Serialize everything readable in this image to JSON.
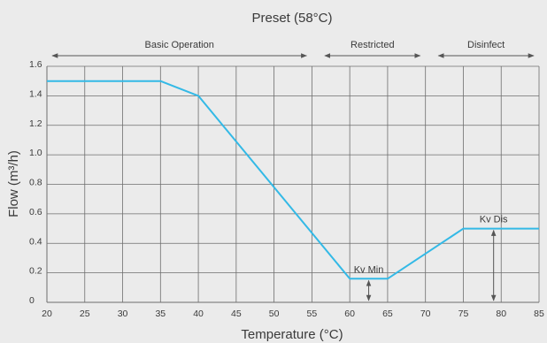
{
  "chart_data": {
    "type": "line",
    "title": "Preset (58°C)",
    "xlabel": "Temperature (°C)",
    "ylabel": "Flow (m³/h)",
    "xlim": [
      20,
      85
    ],
    "ylim": [
      0,
      1.6
    ],
    "x_ticks": [
      "20",
      "25",
      "30",
      "35",
      "40",
      "45",
      "50",
      "55",
      "60",
      "65",
      "70",
      "75",
      "80",
      "85"
    ],
    "y_ticks": [
      "0",
      "0.2",
      "0.4",
      "0.6",
      "0.8",
      "1.0",
      "1.2",
      "1.4",
      "1.6"
    ],
    "grid": true,
    "series": [
      {
        "x": [
          20,
          35,
          40,
          60,
          65,
          75,
          85
        ],
        "y": [
          1.5,
          1.5,
          1.4,
          0.16,
          0.16,
          0.5,
          0.5
        ],
        "color": "#33b9e6"
      }
    ],
    "regions": [
      {
        "label": "Basic Operation",
        "from": 20,
        "to": 55
      },
      {
        "label": "Restricted",
        "from": 56,
        "to": 70
      },
      {
        "label": "Disinfect",
        "from": 71,
        "to": 85
      }
    ],
    "annotations": [
      {
        "label": "Kv Min",
        "x": 62.5,
        "from": 0,
        "to": 0.16
      },
      {
        "label": "Kv Dis",
        "x": 79,
        "from": 0,
        "to": 0.5
      }
    ]
  }
}
